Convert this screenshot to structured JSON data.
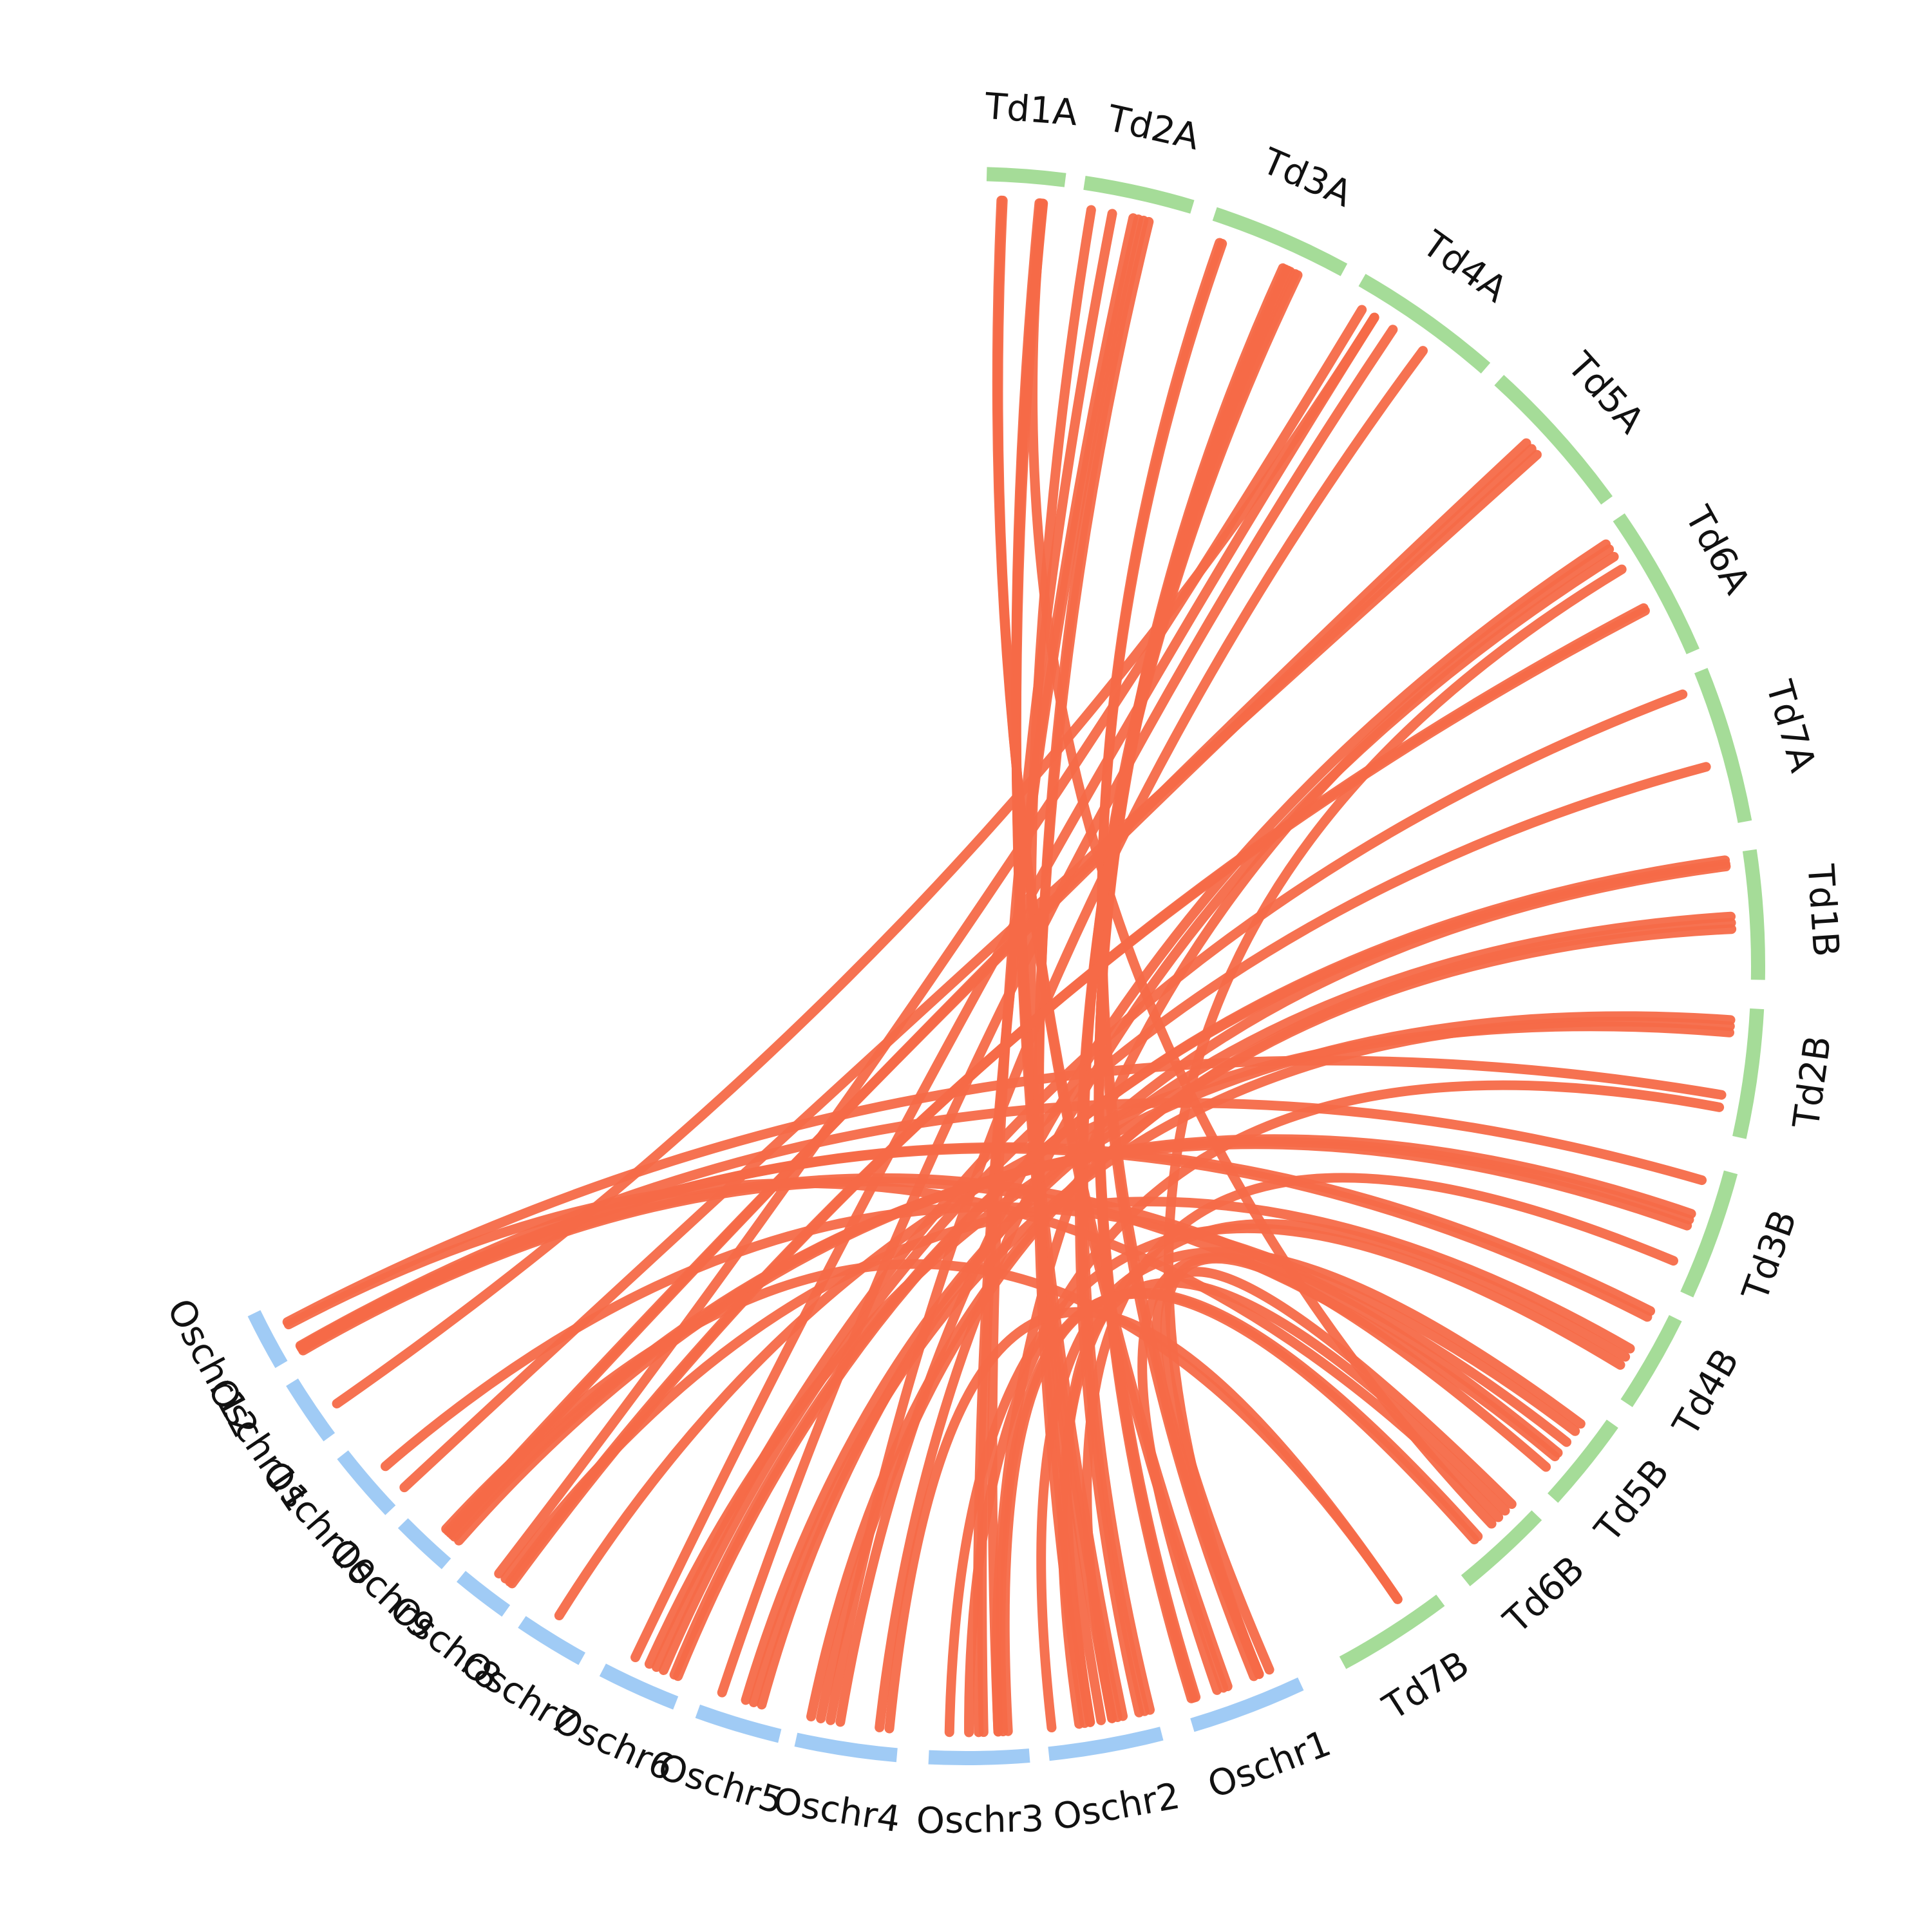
{
  "colors": {
    "rice": "#a0cbf5",
    "wheat": "#a5dc98",
    "link": "#f56a48",
    "background": "#ffffff",
    "label": "#111111"
  },
  "chromosomes": [
    {
      "id": "Td1A",
      "label": "Td1A",
      "group": "wheat"
    },
    {
      "id": "Td2A",
      "label": "Td2A",
      "group": "wheat"
    },
    {
      "id": "Td3A",
      "label": "Td3A",
      "group": "wheat"
    },
    {
      "id": "Td4A",
      "label": "Td4A",
      "group": "wheat"
    },
    {
      "id": "Td5A",
      "label": "Td5A",
      "group": "wheat"
    },
    {
      "id": "Td6A",
      "label": "Td6A",
      "group": "wheat"
    },
    {
      "id": "Td7A",
      "label": "Td7A",
      "group": "wheat"
    },
    {
      "id": "Td1B",
      "label": "Td1B",
      "group": "wheat"
    },
    {
      "id": "Td2B",
      "label": "Td2B",
      "group": "wheat"
    },
    {
      "id": "Td3B",
      "label": "Td3B",
      "group": "wheat"
    },
    {
      "id": "Td4B",
      "label": "Td4B",
      "group": "wheat"
    },
    {
      "id": "Td5B",
      "label": "Td5B",
      "group": "wheat"
    },
    {
      "id": "Td6B",
      "label": "Td6B",
      "group": "wheat"
    },
    {
      "id": "Td7B",
      "label": "Td7B",
      "group": "wheat"
    },
    {
      "id": "Oschr1",
      "label": "Oschr1",
      "group": "rice"
    },
    {
      "id": "Oschr2",
      "label": "Oschr2",
      "group": "rice"
    },
    {
      "id": "Oschr3",
      "label": "Oschr3",
      "group": "rice"
    },
    {
      "id": "Oschr4",
      "label": "Oschr4",
      "group": "rice"
    },
    {
      "id": "Oschr5",
      "label": "Oschr5",
      "group": "rice"
    },
    {
      "id": "Oschr6",
      "label": "Oschr6",
      "group": "rice"
    },
    {
      "id": "Oschr7",
      "label": "Oschr7",
      "group": "rice"
    },
    {
      "id": "Oschr8",
      "label": "Oschr8",
      "group": "rice"
    },
    {
      "id": "Oschr9",
      "label": "Oschr9",
      "group": "rice"
    },
    {
      "id": "Oschr10",
      "label": "Oschr10",
      "group": "rice"
    },
    {
      "id": "Oschr11",
      "label": "Oschr11",
      "group": "rice"
    },
    {
      "id": "Oschr12",
      "label": "Oschr12",
      "group": "rice"
    }
  ],
  "links": [
    [
      "Oschr12",
      0.02,
      "Td5B",
      0.65
    ],
    [
      "Oschr12",
      0.08,
      "Td4B",
      0.05
    ],
    [
      "Oschr12",
      0.1,
      "Td4B",
      0.12
    ],
    [
      "Oschr12",
      0.12,
      "Td3B",
      0.12
    ],
    [
      "Oschr12",
      0.06,
      "Td5B",
      0.45
    ],
    [
      "Oschr12",
      0.55,
      "Td6B",
      0.3
    ],
    [
      "Oschr12",
      0.6,
      "Td2B",
      0.7
    ],
    [
      "Oschr11",
      0.35,
      "Td4A",
      0.2
    ],
    [
      "Oschr10",
      0.5,
      "Td5B",
      0.3
    ],
    [
      "Td1A",
      0.7,
      "Oschr2",
      0.3
    ],
    [
      "Td1A",
      0.72,
      "Oschr2",
      0.35
    ],
    [
      "Td1A",
      0.75,
      "Oschr2",
      0.4
    ],
    [
      "Td1A",
      0.74,
      "Td6B",
      0.4
    ],
    [
      "Td1A",
      0.2,
      "Oschr1",
      0.6
    ],
    [
      "Td1A",
      0.22,
      "Oschr1",
      0.64
    ],
    [
      "Td2A",
      0.1,
      "Oschr2",
      0.5
    ],
    [
      "Td2A",
      0.3,
      "Oschr3",
      0.3
    ],
    [
      "Td2A",
      0.5,
      "Oschr3",
      0.45
    ],
    [
      "Td2A",
      0.55,
      "Oschr3",
      0.5
    ],
    [
      "Td2A",
      0.6,
      "Oschr2",
      0.6
    ],
    [
      "Td2A",
      0.65,
      "Oschr2",
      0.65
    ],
    [
      "Td3A",
      0.1,
      "Oschr1",
      0.3
    ],
    [
      "Td3A",
      0.12,
      "Oschr1",
      0.35
    ],
    [
      "Td3A",
      0.6,
      "Oschr1",
      0.9
    ],
    [
      "Td3A",
      0.62,
      "Oschr1",
      0.92
    ],
    [
      "Td3A",
      0.64,
      "Oschr1",
      0.94
    ],
    [
      "Td3A",
      0.66,
      "Oschr2",
      0.05
    ],
    [
      "Td3A",
      0.7,
      "Oschr2",
      0.1
    ],
    [
      "Td3A",
      0.72,
      "Oschr2",
      0.15
    ],
    [
      "Td4A",
      0.2,
      "Oschr6",
      0.7
    ],
    [
      "Td4A",
      0.35,
      "Oschr5",
      0.8
    ],
    [
      "Td4A",
      0.6,
      "Oschr4",
      0.7
    ],
    [
      "Td4A",
      0.1,
      "Oschr8",
      0.5
    ],
    [
      "Td5A",
      0.4,
      "Oschr9",
      0.3
    ],
    [
      "Td5A",
      0.45,
      "Oschr9",
      0.35
    ],
    [
      "Td5A",
      0.5,
      "Oschr10",
      0.1
    ],
    [
      "Td6A",
      0.1,
      "Oschr4",
      0.6
    ],
    [
      "Td6A",
      0.14,
      "Oschr3",
      0.3
    ],
    [
      "Td6A",
      0.2,
      "Oschr4",
      0.2
    ],
    [
      "Td6A",
      0.3,
      "Oschr1",
      0.3
    ],
    [
      "Td6A",
      0.6,
      "Oschr8",
      0.2
    ],
    [
      "Td6A",
      0.62,
      "Oschr8",
      0.25
    ],
    [
      "Td7A",
      0.1,
      "Oschr6",
      0.4
    ],
    [
      "Td7A",
      0.6,
      "Oschr6",
      0.3
    ],
    [
      "Td1B",
      0.05,
      "Oschr6",
      0.1
    ],
    [
      "Td1B",
      0.08,
      "Oschr6",
      0.15
    ],
    [
      "Td1B",
      0.1,
      "Oschr5",
      0.3
    ],
    [
      "Td1B",
      0.5,
      "Oschr5",
      0.5
    ],
    [
      "Td1B",
      0.55,
      "Oschr4",
      0.8
    ],
    [
      "Td1B",
      0.6,
      "Oschr4",
      0.9
    ],
    [
      "Td2B",
      0.1,
      "Oschr6",
      0.5
    ],
    [
      "Td2B",
      0.15,
      "Oschr5",
      0.4
    ],
    [
      "Td2B",
      0.2,
      "Oschr7",
      0.6
    ],
    [
      "Td2B",
      0.8,
      "Oschr3",
      0.6
    ],
    [
      "Td3B",
      0.4,
      "Oschr9",
      0.1
    ],
    [
      "Td3B",
      0.45,
      "Oschr9",
      0.2
    ],
    [
      "Td3B",
      0.5,
      "Oschr9",
      0.25
    ],
    [
      "Td3B",
      0.8,
      "Oschr2",
      0.4
    ],
    [
      "Td4B",
      0.5,
      "Oschr8",
      0.35
    ],
    [
      "Td4B",
      0.6,
      "Oschr2",
      0.7
    ],
    [
      "Td4B",
      0.7,
      "Oschr3",
      0.8
    ],
    [
      "Td5B",
      0.2,
      "Oschr2",
      0.95
    ],
    [
      "Td5B",
      0.6,
      "Oschr1",
      0.7
    ],
    [
      "Td5B",
      0.8,
      "Oschr1",
      0.2
    ],
    [
      "Td6B",
      0.1,
      "Oschr1",
      0.3
    ],
    [
      "Td6B",
      0.2,
      "Oschr2",
      0.6
    ],
    [
      "Td6B",
      0.6,
      "Oschr3",
      0.2
    ],
    [
      "Td6B",
      0.65,
      "Oschr3",
      0.25
    ],
    [
      "Td7B",
      0.3,
      "Oschr9",
      0.4
    ],
    [
      "Td7B",
      0.3,
      "Oschr4",
      0.1
    ]
  ]
}
